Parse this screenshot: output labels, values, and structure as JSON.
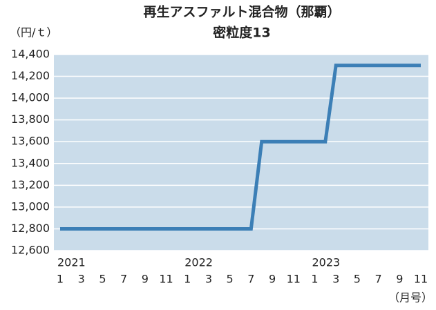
{
  "chart_data": {
    "type": "line",
    "title": "再生アスファルト混合物（那覇）",
    "subtitle": "密粒度13",
    "y_unit": "（円/ｔ）",
    "x_unit": "（月号）",
    "categories": [
      "1",
      null,
      "3",
      null,
      "5",
      null,
      "7",
      null,
      "9",
      null,
      "11",
      null,
      "1",
      null,
      "3",
      null,
      "5",
      null,
      "7",
      null,
      "9",
      null,
      "11",
      null,
      "1",
      null,
      "3",
      null,
      "5",
      null,
      "7",
      null,
      "9",
      null,
      "11"
    ],
    "year_labels": [
      "2021",
      null,
      null,
      null,
      null,
      null,
      null,
      null,
      null,
      null,
      null,
      null,
      "2022",
      null,
      null,
      null,
      null,
      null,
      null,
      null,
      null,
      null,
      null,
      null,
      "2023",
      null,
      null,
      null,
      null,
      null,
      null,
      null,
      null,
      null,
      null
    ],
    "series": [
      {
        "name": "密粒度13",
        "color": "#3c7fb6",
        "values": [
          12800,
          12800,
          12800,
          12800,
          12800,
          12800,
          12800,
          12800,
          12800,
          12800,
          12800,
          12800,
          12800,
          12800,
          12800,
          12800,
          12800,
          12800,
          12800,
          13600,
          13600,
          13600,
          13600,
          13600,
          13600,
          13600,
          14300,
          14300,
          14300,
          14300,
          14300,
          14300,
          14300,
          14300,
          14300
        ]
      }
    ],
    "ylim": [
      12600,
      14400
    ],
    "yticks": [
      {
        "value": 12600,
        "label": "12,600"
      },
      {
        "value": 12800,
        "label": "12,800"
      },
      {
        "value": 13000,
        "label": "13,000"
      },
      {
        "value": 13200,
        "label": "13,200"
      },
      {
        "value": 13400,
        "label": "13,400"
      },
      {
        "value": 13600,
        "label": "13,600"
      },
      {
        "value": 13800,
        "label": "13,800"
      },
      {
        "value": 14000,
        "label": "14,000"
      },
      {
        "value": 14200,
        "label": "14,200"
      },
      {
        "value": 14400,
        "label": "14,400"
      }
    ],
    "grid": true,
    "background": "#cadcea"
  }
}
